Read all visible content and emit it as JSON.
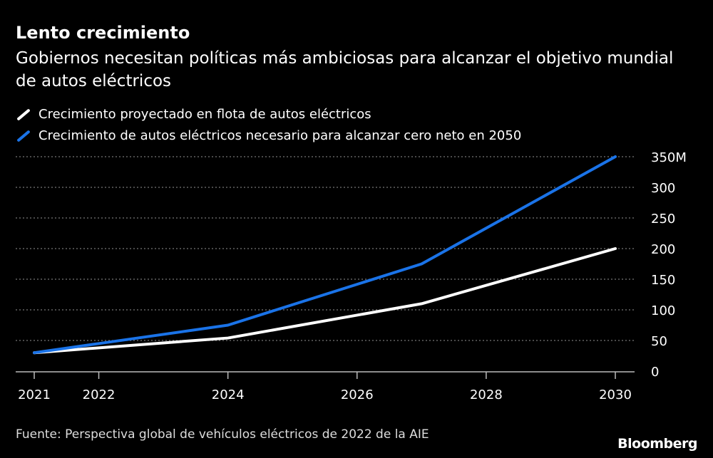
{
  "chart_data": {
    "type": "line",
    "title": "Lento crecimiento",
    "subtitle": "Gobiernos necesitan políticas más ambiciosas para alcanzar el objetivo mundial de autos eléctricos",
    "x": [
      2021,
      2022,
      2024,
      2027,
      2030
    ],
    "xticks": [
      "2021",
      "2022",
      "2024",
      "2026",
      "2028",
      "2030"
    ],
    "xlim": [
      2021,
      2030
    ],
    "ylim": [
      0,
      350
    ],
    "yticks": [
      "0",
      "50",
      "100",
      "150",
      "200",
      "250",
      "300",
      "350M"
    ],
    "ylabel": "",
    "xlabel": "",
    "grid": true,
    "legend_position": "top-left",
    "series": [
      {
        "name": "Crecimiento proyectado en flota de autos eléctricos",
        "color": "#ffffff",
        "values": [
          30,
          38,
          54,
          110,
          200
        ]
      },
      {
        "name": "Crecimiento de autos eléctricos necesario para alcanzar cero neto en 2050",
        "color": "#1a73e8",
        "values": [
          30,
          45,
          75,
          175,
          350
        ]
      }
    ],
    "source": "Fuente: Perspectiva global de vehículos eléctricos de 2022 de la AIE"
  },
  "brand": "Bloomberg"
}
